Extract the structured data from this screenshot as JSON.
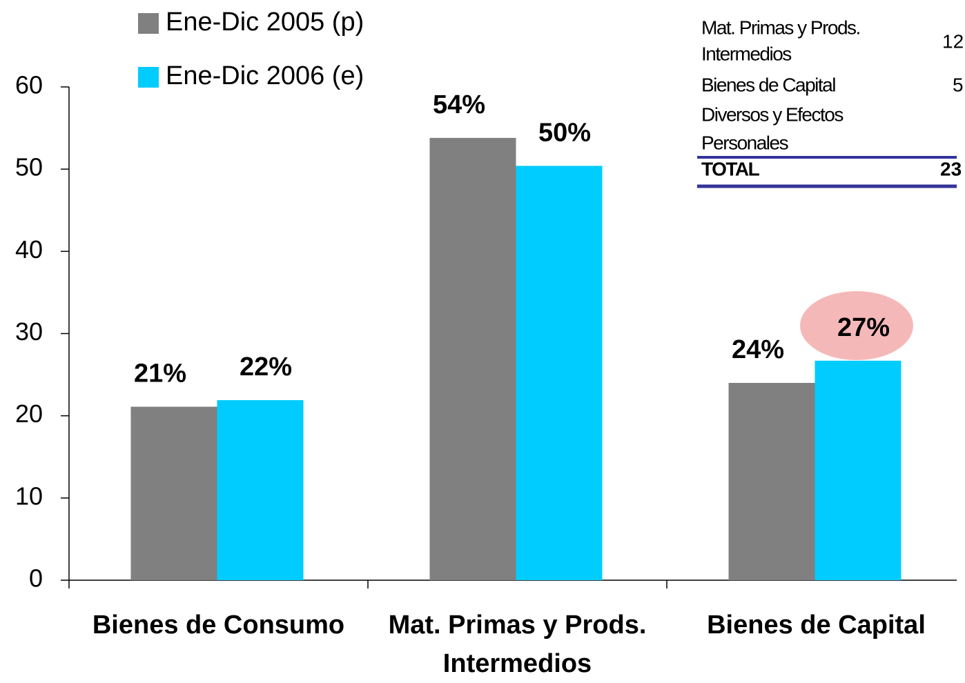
{
  "chart_data": {
    "type": "bar",
    "categories": [
      "Bienes de Consumo",
      "Mat. Primas y Prods. Intermedios",
      "Bienes de Capital"
    ],
    "series": [
      {
        "name": "Ene-Dic 2005 (p)",
        "color": "#808080",
        "values": [
          21.1,
          53.8,
          24.0
        ],
        "value_labels": [
          "21%",
          "54%",
          "24%"
        ]
      },
      {
        "name": "Ene-Dic 2006 (e)",
        "color": "#00ccff",
        "values": [
          21.9,
          50.4,
          26.7
        ],
        "value_labels": [
          "22%",
          "50%",
          "27%"
        ]
      }
    ],
    "ylim": [
      0,
      60
    ],
    "yticks": [
      0,
      10,
      20,
      30,
      40,
      50,
      60
    ],
    "grid": false,
    "legend": "top-left"
  },
  "table": {
    "rows": [
      {
        "label": [
          "Mat. Primas y Prods.",
          "Intermedios"
        ],
        "value": "12"
      },
      {
        "label": [
          "Bienes de Capital"
        ],
        "value": "5"
      },
      {
        "label": [
          "Diversos y Efectos",
          "Personales"
        ],
        "value": null
      },
      {
        "label": [
          "TOTAL"
        ],
        "value": "23"
      }
    ]
  }
}
